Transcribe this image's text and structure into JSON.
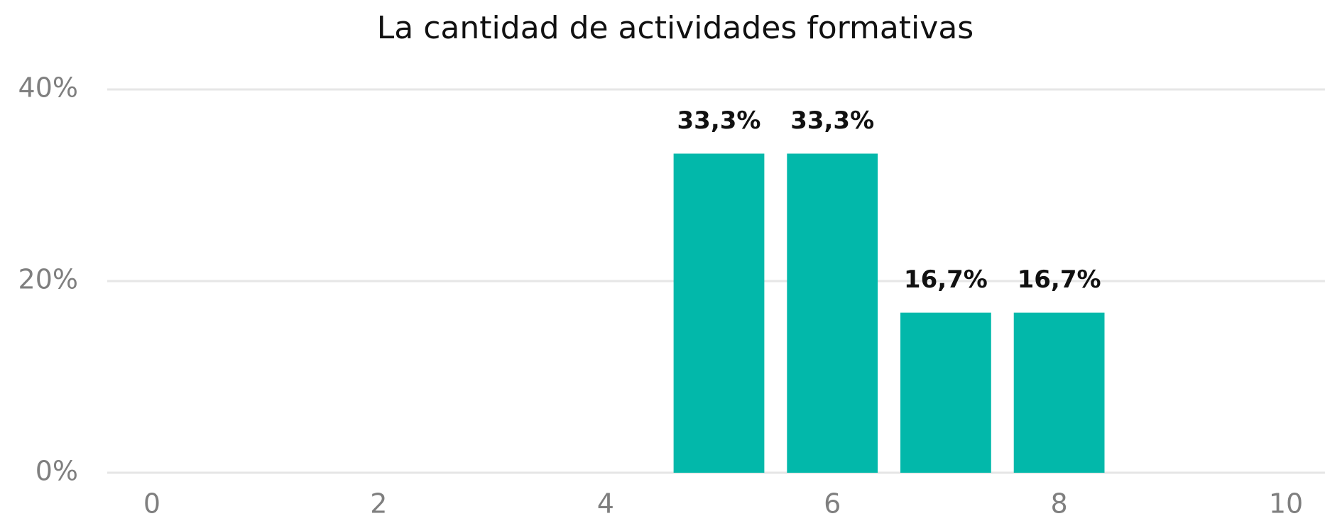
{
  "chart_data": {
    "type": "bar",
    "title": "La cantidad de actividades formativas",
    "x": [
      5,
      6,
      7,
      8
    ],
    "values": [
      33.3,
      33.3,
      16.7,
      16.7
    ],
    "value_labels": [
      "33,3%",
      "33,3%",
      "16,7%",
      "16,7%"
    ],
    "color": "#02b8aa",
    "xlim": [
      0,
      10
    ],
    "xticks": [
      0,
      2,
      4,
      6,
      8,
      10
    ],
    "ylim": [
      0,
      40
    ],
    "yticks": [
      {
        "value": 0,
        "label": "0%"
      },
      {
        "value": 20,
        "label": "20%"
      },
      {
        "value": 40,
        "label": "40%"
      }
    ],
    "grid": true
  }
}
